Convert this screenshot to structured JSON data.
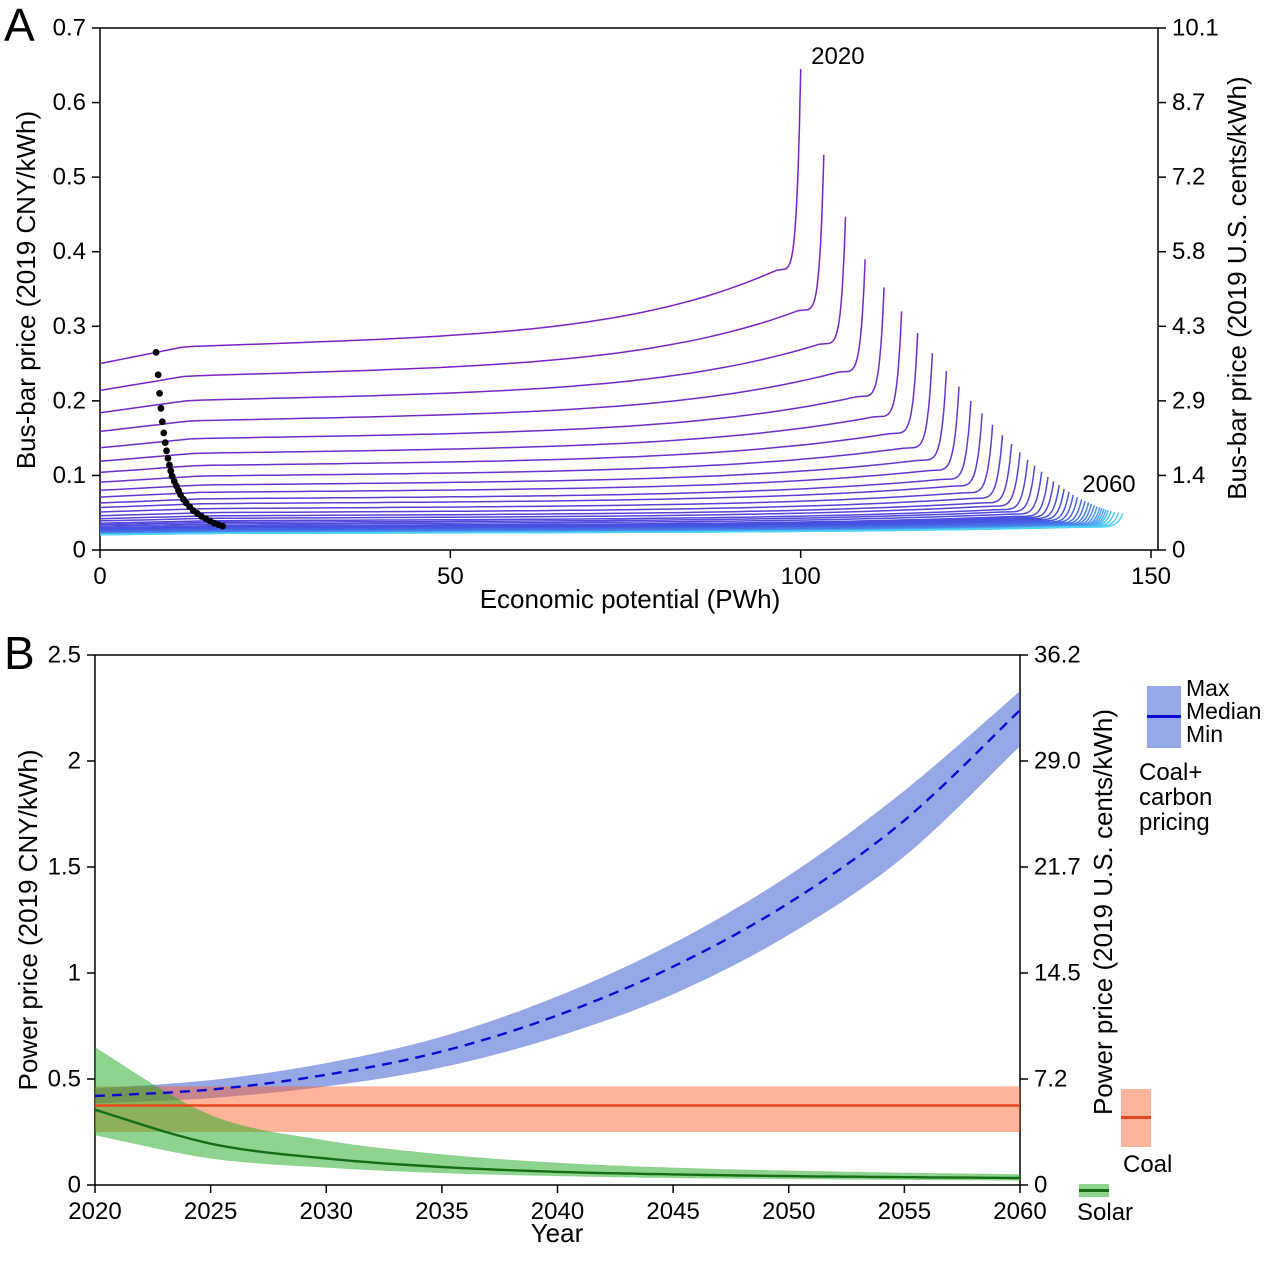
{
  "figure": {
    "panelA_label": "A",
    "panelB_label": "B"
  },
  "chart_data": [
    {
      "id": "panel-A",
      "type": "line",
      "description": "Solar supply curves: bus-bar price vs economic potential, one curve per year 2020-2060; black dots mark realized deployment",
      "xlabel": "Economic potential (PWh)",
      "ylabel_left": "Bus-bar price (2019 CNY/kWh)",
      "ylabel_right": "Bus-bar price (2019 U.S. cents/kWh)",
      "xlim": [
        0,
        151
      ],
      "ylim_left": [
        0,
        0.7
      ],
      "xticks": {
        "values": [
          0,
          50,
          100,
          150
        ],
        "labels": [
          "0",
          "50",
          "100",
          "150"
        ]
      },
      "yticks_left": {
        "values": [
          0,
          0.1,
          0.2,
          0.3,
          0.4,
          0.5,
          0.6,
          0.7
        ],
        "labels": [
          "0",
          "0.1",
          "0.2",
          "0.3",
          "0.4",
          "0.5",
          "0.6",
          "0.7"
        ]
      },
      "yticks_right": {
        "labels": [
          "0",
          "1.4",
          "2.9",
          "4.3",
          "5.8",
          "7.2",
          "8.7",
          "10.1"
        ]
      },
      "annotations": [
        {
          "text": "2020",
          "x": 101.5,
          "y": 0.652,
          "anchor": "start"
        },
        {
          "text": "2060",
          "x": 144,
          "y": 0.078,
          "anchor": "middle"
        }
      ],
      "color_stops": [
        [
          0,
          "#7b22c8"
        ],
        [
          0.55,
          "#4453e2"
        ],
        [
          1,
          "#4ed4f6"
        ]
      ],
      "curve_shape": {
        "knee_ratio": 1.5,
        "knee_x_fraction": 0.965
      },
      "supply_curves": [
        [
          2020,
          0.25,
          0.645,
          100.0
        ],
        [
          2021,
          0.214,
          0.53,
          103.3
        ],
        [
          2022,
          0.184,
          0.447,
          106.4
        ],
        [
          2023,
          0.159,
          0.39,
          109.2
        ],
        [
          2024,
          0.137,
          0.352,
          111.9
        ],
        [
          2025,
          0.119,
          0.32,
          114.4
        ],
        [
          2026,
          0.104,
          0.291,
          116.7
        ],
        [
          2027,
          0.091,
          0.264,
          118.8
        ],
        [
          2028,
          0.08,
          0.24,
          120.8
        ],
        [
          2029,
          0.071,
          0.219,
          122.6
        ],
        [
          2030,
          0.063,
          0.2,
          124.3
        ],
        [
          2031,
          0.057,
          0.183,
          125.9
        ],
        [
          2032,
          0.051,
          0.168,
          127.4
        ],
        [
          2033,
          0.046,
          0.154,
          128.8
        ],
        [
          2034,
          0.042,
          0.142,
          130.1
        ],
        [
          2035,
          0.039,
          0.131,
          131.3
        ],
        [
          2036,
          0.036,
          0.121,
          132.4
        ],
        [
          2037,
          0.034,
          0.113,
          133.4
        ],
        [
          2038,
          0.032,
          0.105,
          134.4
        ],
        [
          2039,
          0.03,
          0.098,
          135.3
        ],
        [
          2040,
          0.029,
          0.092,
          136.1
        ],
        [
          2041,
          0.028,
          0.087,
          136.9
        ],
        [
          2042,
          0.027,
          0.082,
          137.6
        ],
        [
          2043,
          0.026,
          0.078,
          138.3
        ],
        [
          2044,
          0.025,
          0.074,
          138.9
        ],
        [
          2045,
          0.0245,
          0.071,
          139.5
        ],
        [
          2046,
          0.0238,
          0.068,
          140.1
        ],
        [
          2047,
          0.0232,
          0.066,
          140.6
        ],
        [
          2048,
          0.0227,
          0.064,
          141.1
        ],
        [
          2049,
          0.0222,
          0.062,
          141.5
        ],
        [
          2050,
          0.0218,
          0.06,
          141.9
        ],
        [
          2051,
          0.0215,
          0.058,
          142.3
        ],
        [
          2052,
          0.0213,
          0.057,
          142.7
        ],
        [
          2053,
          0.0211,
          0.056,
          143.0
        ],
        [
          2054,
          0.021,
          0.055,
          143.3
        ],
        [
          2055,
          0.0209,
          0.054,
          143.6
        ],
        [
          2056,
          0.0208,
          0.053,
          143.9
        ],
        [
          2057,
          0.0207,
          0.052,
          144.3
        ],
        [
          2058,
          0.0206,
          0.051,
          144.8
        ],
        [
          2059,
          0.0206,
          0.05,
          145.4
        ],
        [
          2060,
          0.0205,
          0.049,
          146.0
        ]
      ],
      "observed_points": [
        [
          8.0,
          0.265
        ],
        [
          8.3,
          0.235
        ],
        [
          8.5,
          0.21
        ],
        [
          8.7,
          0.19
        ],
        [
          8.9,
          0.172
        ],
        [
          9.1,
          0.157
        ],
        [
          9.3,
          0.144
        ],
        [
          9.5,
          0.133
        ],
        [
          9.7,
          0.123
        ],
        [
          9.9,
          0.114
        ],
        [
          10.1,
          0.106
        ],
        [
          10.3,
          0.099
        ],
        [
          10.6,
          0.092
        ],
        [
          10.9,
          0.086
        ],
        [
          11.2,
          0.08
        ],
        [
          11.5,
          0.074
        ],
        [
          11.9,
          0.068
        ],
        [
          12.3,
          0.063
        ],
        [
          12.8,
          0.058
        ],
        [
          13.3,
          0.053
        ],
        [
          13.9,
          0.049
        ],
        [
          14.5,
          0.045
        ],
        [
          15.1,
          0.042
        ],
        [
          15.7,
          0.039
        ],
        [
          16.3,
          0.036
        ],
        [
          16.9,
          0.034
        ],
        [
          17.5,
          0.032
        ]
      ]
    },
    {
      "id": "panel-B",
      "type": "area",
      "description": "Projected power price ranges 2020-2060: coal with carbon pricing, coal, and solar (max/median/min bands)",
      "xlabel": "Year",
      "ylabel_left": "Power price (2019 CNY/kWh)",
      "ylabel_right": "Power price (2019 U.S. cents/kWh)",
      "xlim": [
        2020,
        2060
      ],
      "ylim_left": [
        0,
        2.5
      ],
      "x": [
        2020,
        2025,
        2030,
        2035,
        2040,
        2045,
        2050,
        2055,
        2060
      ],
      "xticks": {
        "values": [
          2020,
          2025,
          2030,
          2035,
          2040,
          2045,
          2050,
          2055,
          2060
        ],
        "labels": [
          "2020",
          "2025",
          "2030",
          "2035",
          "2040",
          "2045",
          "2050",
          "2055",
          "2060"
        ]
      },
      "yticks_left": {
        "values": [
          0,
          0.5,
          1,
          1.5,
          2,
          2.5
        ],
        "labels": [
          "0",
          "0.5",
          "1",
          "1.5",
          "2",
          "2.5"
        ]
      },
      "yticks_right": {
        "labels": [
          "0",
          "7.2",
          "14.5",
          "21.7",
          "29.0",
          "36.2"
        ]
      },
      "series": [
        {
          "name": "Coal+carbon pricing",
          "band_color": "rgba(45,80,205,0.5)",
          "line_color": "#0b0bd1",
          "line_dash": "10 7",
          "median": [
            0.42,
            0.45,
            0.52,
            0.63,
            0.8,
            1.03,
            1.33,
            1.72,
            2.24
          ],
          "max": [
            0.455,
            0.495,
            0.575,
            0.7,
            0.89,
            1.14,
            1.46,
            1.86,
            2.33
          ],
          "min": [
            0.385,
            0.41,
            0.465,
            0.555,
            0.7,
            0.9,
            1.18,
            1.55,
            2.07
          ]
        },
        {
          "name": "Coal",
          "band_color": "rgba(255,95,40,0.47)",
          "line_color": "#e8481f",
          "line_dash": "",
          "median": [
            0.375,
            0.375,
            0.375,
            0.375,
            0.375,
            0.375,
            0.375,
            0.375,
            0.375
          ],
          "max": [
            0.465,
            0.465,
            0.465,
            0.465,
            0.465,
            0.465,
            0.465,
            0.465,
            0.465
          ],
          "min": [
            0.25,
            0.25,
            0.25,
            0.25,
            0.25,
            0.25,
            0.25,
            0.25,
            0.25
          ]
        },
        {
          "name": "Solar",
          "band_color": "rgba(30,170,30,0.5)",
          "line_color": "#156e15",
          "line_dash": "",
          "median": [
            0.355,
            0.195,
            0.125,
            0.085,
            0.062,
            0.05,
            0.042,
            0.037,
            0.033
          ],
          "max": [
            0.65,
            0.33,
            0.21,
            0.145,
            0.105,
            0.082,
            0.068,
            0.058,
            0.051
          ],
          "min": [
            0.235,
            0.125,
            0.082,
            0.056,
            0.042,
            0.033,
            0.028,
            0.024,
            0.021
          ]
        }
      ],
      "legend": {
        "max": "Max",
        "median": "Median",
        "min": "Min",
        "coal_carbon": "Coal+\ncarbon\npricing",
        "coal": "Coal",
        "solar": "Solar"
      },
      "legend_colors": {
        "coal_carbon_band": "#95a9e8",
        "coal_carbon_line": "#0b0bd1",
        "coal_band": "#ffb49b",
        "coal_line": "#e8481f",
        "solar_band": "#8ed48e",
        "solar_line": "#156e15"
      }
    }
  ]
}
